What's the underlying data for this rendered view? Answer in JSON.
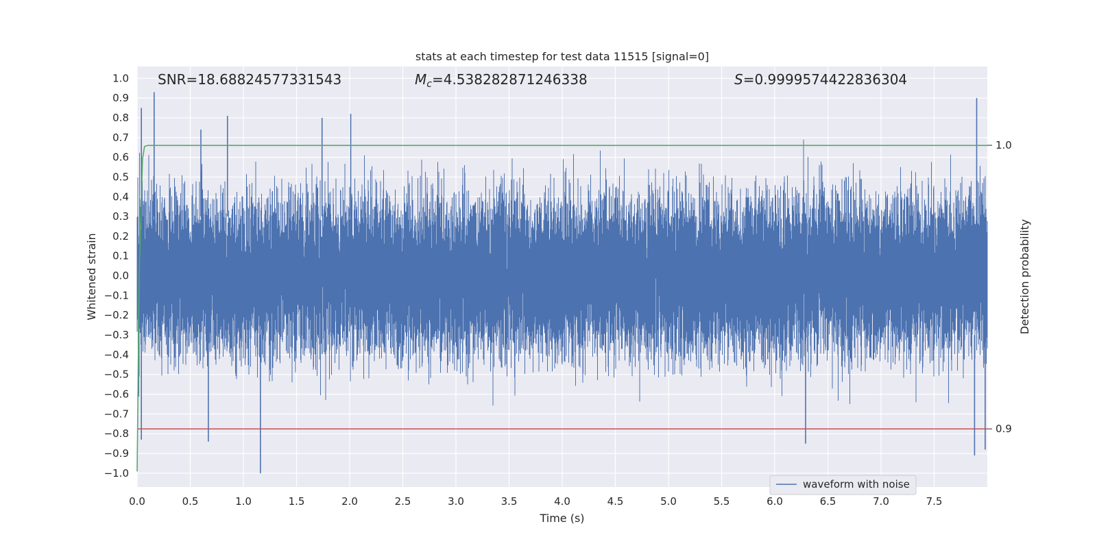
{
  "chart_data": {
    "type": "line",
    "title": "stats at each timestep for test data 11515 [signal=0]",
    "xlabel": "Time (s)",
    "ylabel": "Whitened strain",
    "ylabel_right": "Detection probability",
    "xlim": [
      0.0,
      8.0
    ],
    "ylim": [
      -1.07,
      1.06
    ],
    "ylim_right": [
      0.8795,
      1.0278
    ],
    "x_ticks": [
      "0.0",
      "0.5",
      "1.0",
      "1.5",
      "2.0",
      "2.5",
      "3.0",
      "3.5",
      "4.0",
      "4.5",
      "5.0",
      "5.5",
      "6.0",
      "6.5",
      "7.0",
      "7.5"
    ],
    "y_ticks": [
      "1.0",
      "0.9",
      "0.8",
      "0.7",
      "0.6",
      "0.5",
      "0.4",
      "0.3",
      "0.2",
      "0.1",
      "0.0",
      "−0.1",
      "−0.2",
      "−0.3",
      "−0.4",
      "−0.5",
      "−0.6",
      "−0.7",
      "−0.8",
      "−0.9",
      "−1.0"
    ],
    "y_right_ticks": [
      "1.0",
      "0.9"
    ],
    "grid": true,
    "legend_position": "lower-right",
    "annotations": {
      "snr": "SNR=18.68824577331543",
      "mc_symbol": "M",
      "mc_sub": "c",
      "mc_value": "=4.538282871246338",
      "s_symbol": "S",
      "s_value": "=0.9999574422836304"
    },
    "series": [
      {
        "name": "waveform with noise",
        "color": "#4c72b0",
        "description": "dense whitened-strain noise sampled across 0–8 s, amplitude mostly within ±0.5",
        "peaks": [
          {
            "x": 0.04,
            "y": 0.85
          },
          {
            "x": 0.16,
            "y": 0.93
          },
          {
            "x": 0.6,
            "y": 0.74
          },
          {
            "x": 0.85,
            "y": 0.81
          },
          {
            "x": 1.74,
            "y": 0.8
          },
          {
            "x": 2.01,
            "y": 0.82
          },
          {
            "x": 7.9,
            "y": 0.9
          }
        ],
        "troughs": [
          {
            "x": 0.04,
            "y": -0.83
          },
          {
            "x": 0.67,
            "y": -0.84
          },
          {
            "x": 1.16,
            "y": -1.0
          },
          {
            "x": 6.29,
            "y": -0.85
          },
          {
            "x": 7.88,
            "y": -0.91
          },
          {
            "x": 7.98,
            "y": -0.88
          }
        ]
      },
      {
        "name": "",
        "axis": "right",
        "color": "#55a868",
        "description": "detection probability: rises from ~0.89 at t=0 to ~1.0 by t=0.07 and stays",
        "points": [
          [
            0.0,
            0.885
          ],
          [
            0.02,
            0.955
          ],
          [
            0.05,
            0.995
          ],
          [
            0.07,
            0.9996
          ],
          [
            0.1,
            0.99996
          ],
          [
            8.0,
            0.99996
          ]
        ]
      },
      {
        "name": "",
        "axis": "right",
        "color": "#c44e52",
        "description": "threshold line",
        "points": [
          [
            0.0,
            0.9
          ],
          [
            8.0,
            0.9
          ]
        ]
      }
    ]
  }
}
